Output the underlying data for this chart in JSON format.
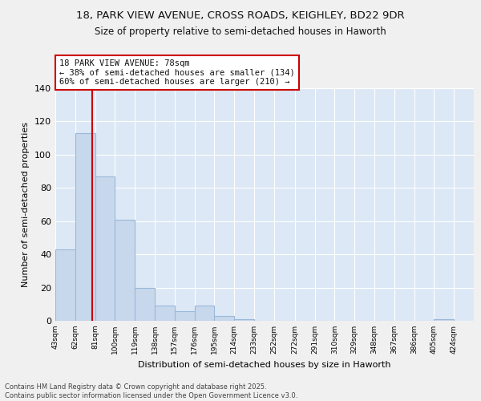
{
  "title1": "18, PARK VIEW AVENUE, CROSS ROADS, KEIGHLEY, BD22 9DR",
  "title2": "Size of property relative to semi-detached houses in Haworth",
  "xlabel": "Distribution of semi-detached houses by size in Haworth",
  "ylabel": "Number of semi-detached properties",
  "bins": [
    43,
    62,
    81,
    100,
    119,
    138,
    157,
    176,
    195,
    214,
    233,
    252,
    272,
    291,
    310,
    329,
    348,
    367,
    386,
    405,
    424
  ],
  "counts": [
    43,
    113,
    87,
    61,
    20,
    9,
    6,
    9,
    3,
    1,
    0,
    0,
    0,
    0,
    0,
    0,
    0,
    0,
    0,
    1
  ],
  "property_size": 78,
  "smaller_pct": 38,
  "smaller_count": 134,
  "larger_pct": 60,
  "larger_count": 210,
  "property_label": "18 PARK VIEW AVENUE: 78sqm",
  "bar_color": "#c8d8ec",
  "bar_edge_color": "#9ab8d8",
  "line_color": "#cc0000",
  "background_color": "#dce8f5",
  "grid_color": "#ffffff",
  "footer1": "Contains HM Land Registry data © Crown copyright and database right 2025.",
  "footer2": "Contains public sector information licensed under the Open Government Licence v3.0.",
  "ylim": [
    0,
    140
  ],
  "fig_bg": "#f0f0f0"
}
